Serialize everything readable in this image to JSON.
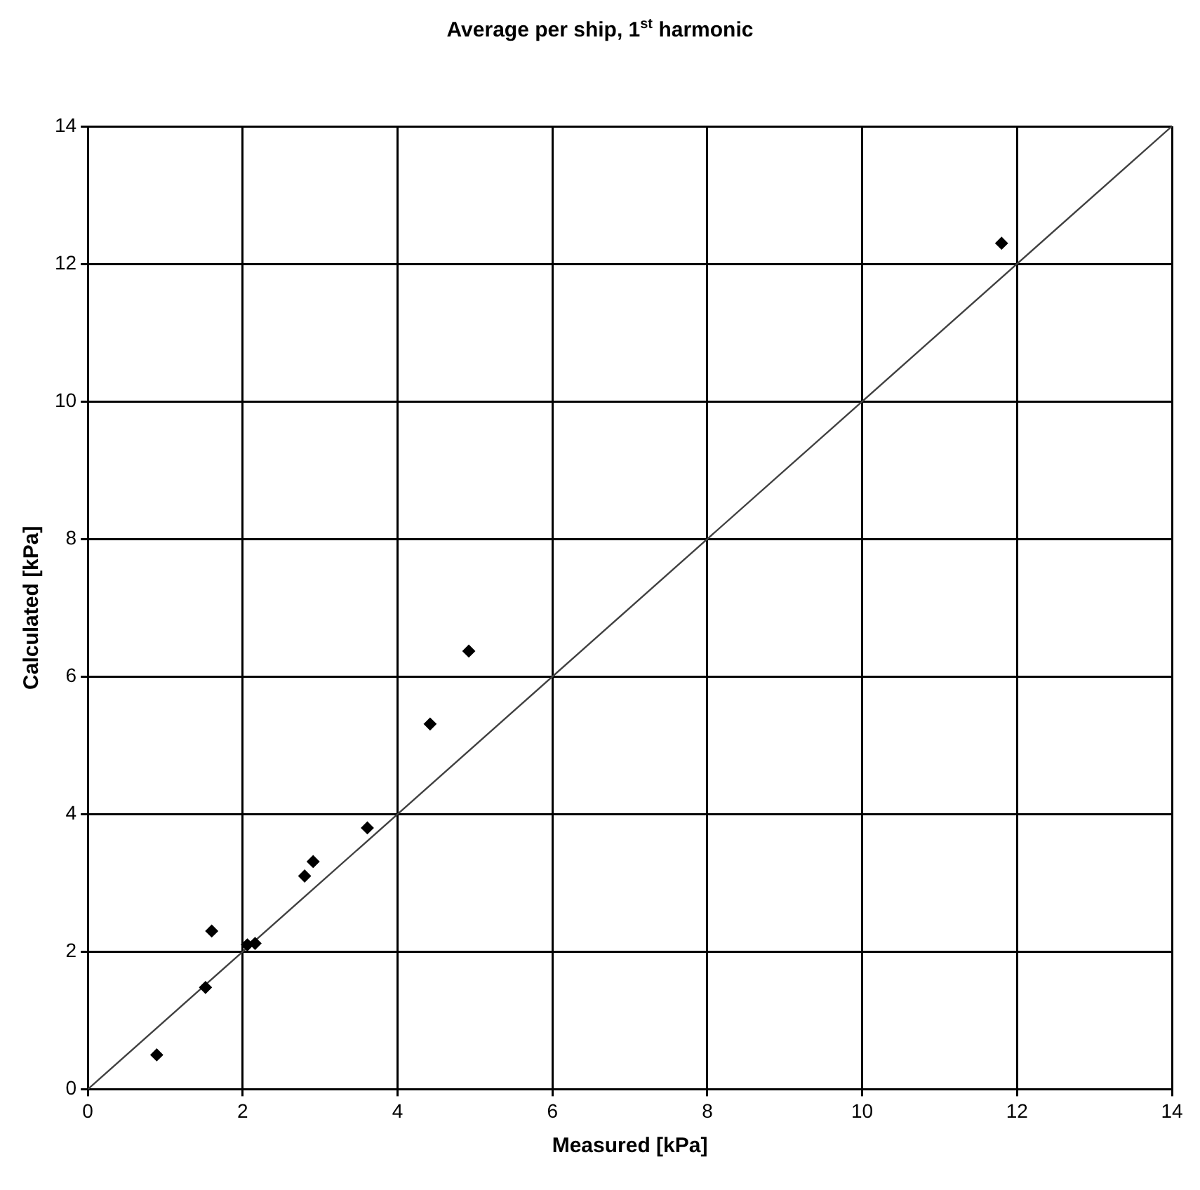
{
  "chart_data": {
    "type": "scatter",
    "title": "Average per ship, 1$^{st}$ harmonic",
    "xlabel": "Measured [kPa]",
    "ylabel": "Calculated [kPa]",
    "series": [
      {
        "color": "#000000",
        "marker": "diamond",
        "x": [
          0.89,
          1.52,
          1.6,
          2.06,
          2.16,
          2.8,
          2.91,
          3.61,
          4.42,
          4.92,
          11.8
        ],
        "values": [
          0.5,
          1.48,
          2.3,
          2.1,
          2.12,
          3.1,
          3.31,
          3.8,
          5.31,
          6.37,
          12.3
        ]
      },
      {
        "type": "line",
        "color": "#404040",
        "marker": "none",
        "x": [
          0,
          14
        ],
        "values": [
          0,
          14
        ]
      }
    ],
    "xlim": [
      0,
      14
    ],
    "xticks": [
      0,
      2,
      4,
      6,
      8,
      10,
      12,
      14
    ],
    "ylim": [
      0,
      14
    ],
    "yticks": [
      0,
      2,
      4,
      6,
      8,
      10,
      12,
      14
    ],
    "grid": true,
    "legend": false
  }
}
